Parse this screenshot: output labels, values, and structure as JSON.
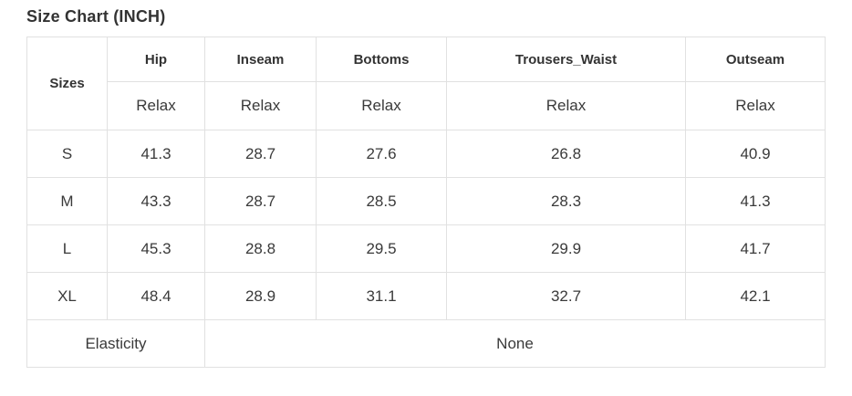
{
  "page": {
    "title": "Size Chart (INCH)"
  },
  "table": {
    "corner_header": "Sizes",
    "columns": [
      {
        "label": "Hip",
        "sub": "Relax"
      },
      {
        "label": "Inseam",
        "sub": "Relax"
      },
      {
        "label": "Bottoms",
        "sub": "Relax"
      },
      {
        "label": "Trousers_Waist",
        "sub": "Relax"
      },
      {
        "label": "Outseam",
        "sub": "Relax"
      }
    ],
    "rows": [
      {
        "size": "S",
        "values": [
          "41.3",
          "28.7",
          "27.6",
          "26.8",
          "40.9"
        ]
      },
      {
        "size": "M",
        "values": [
          "43.3",
          "28.7",
          "28.5",
          "28.3",
          "41.3"
        ]
      },
      {
        "size": "L",
        "values": [
          "45.3",
          "28.8",
          "29.5",
          "29.9",
          "41.7"
        ]
      },
      {
        "size": "XL",
        "values": [
          "48.4",
          "28.9",
          "31.1",
          "32.7",
          "42.1"
        ]
      }
    ],
    "footer": {
      "label": "Elasticity",
      "value": "None"
    }
  },
  "colors": {
    "header_bg": "#f7f7f7",
    "border": "#e1e1e1",
    "text": "#333333"
  }
}
